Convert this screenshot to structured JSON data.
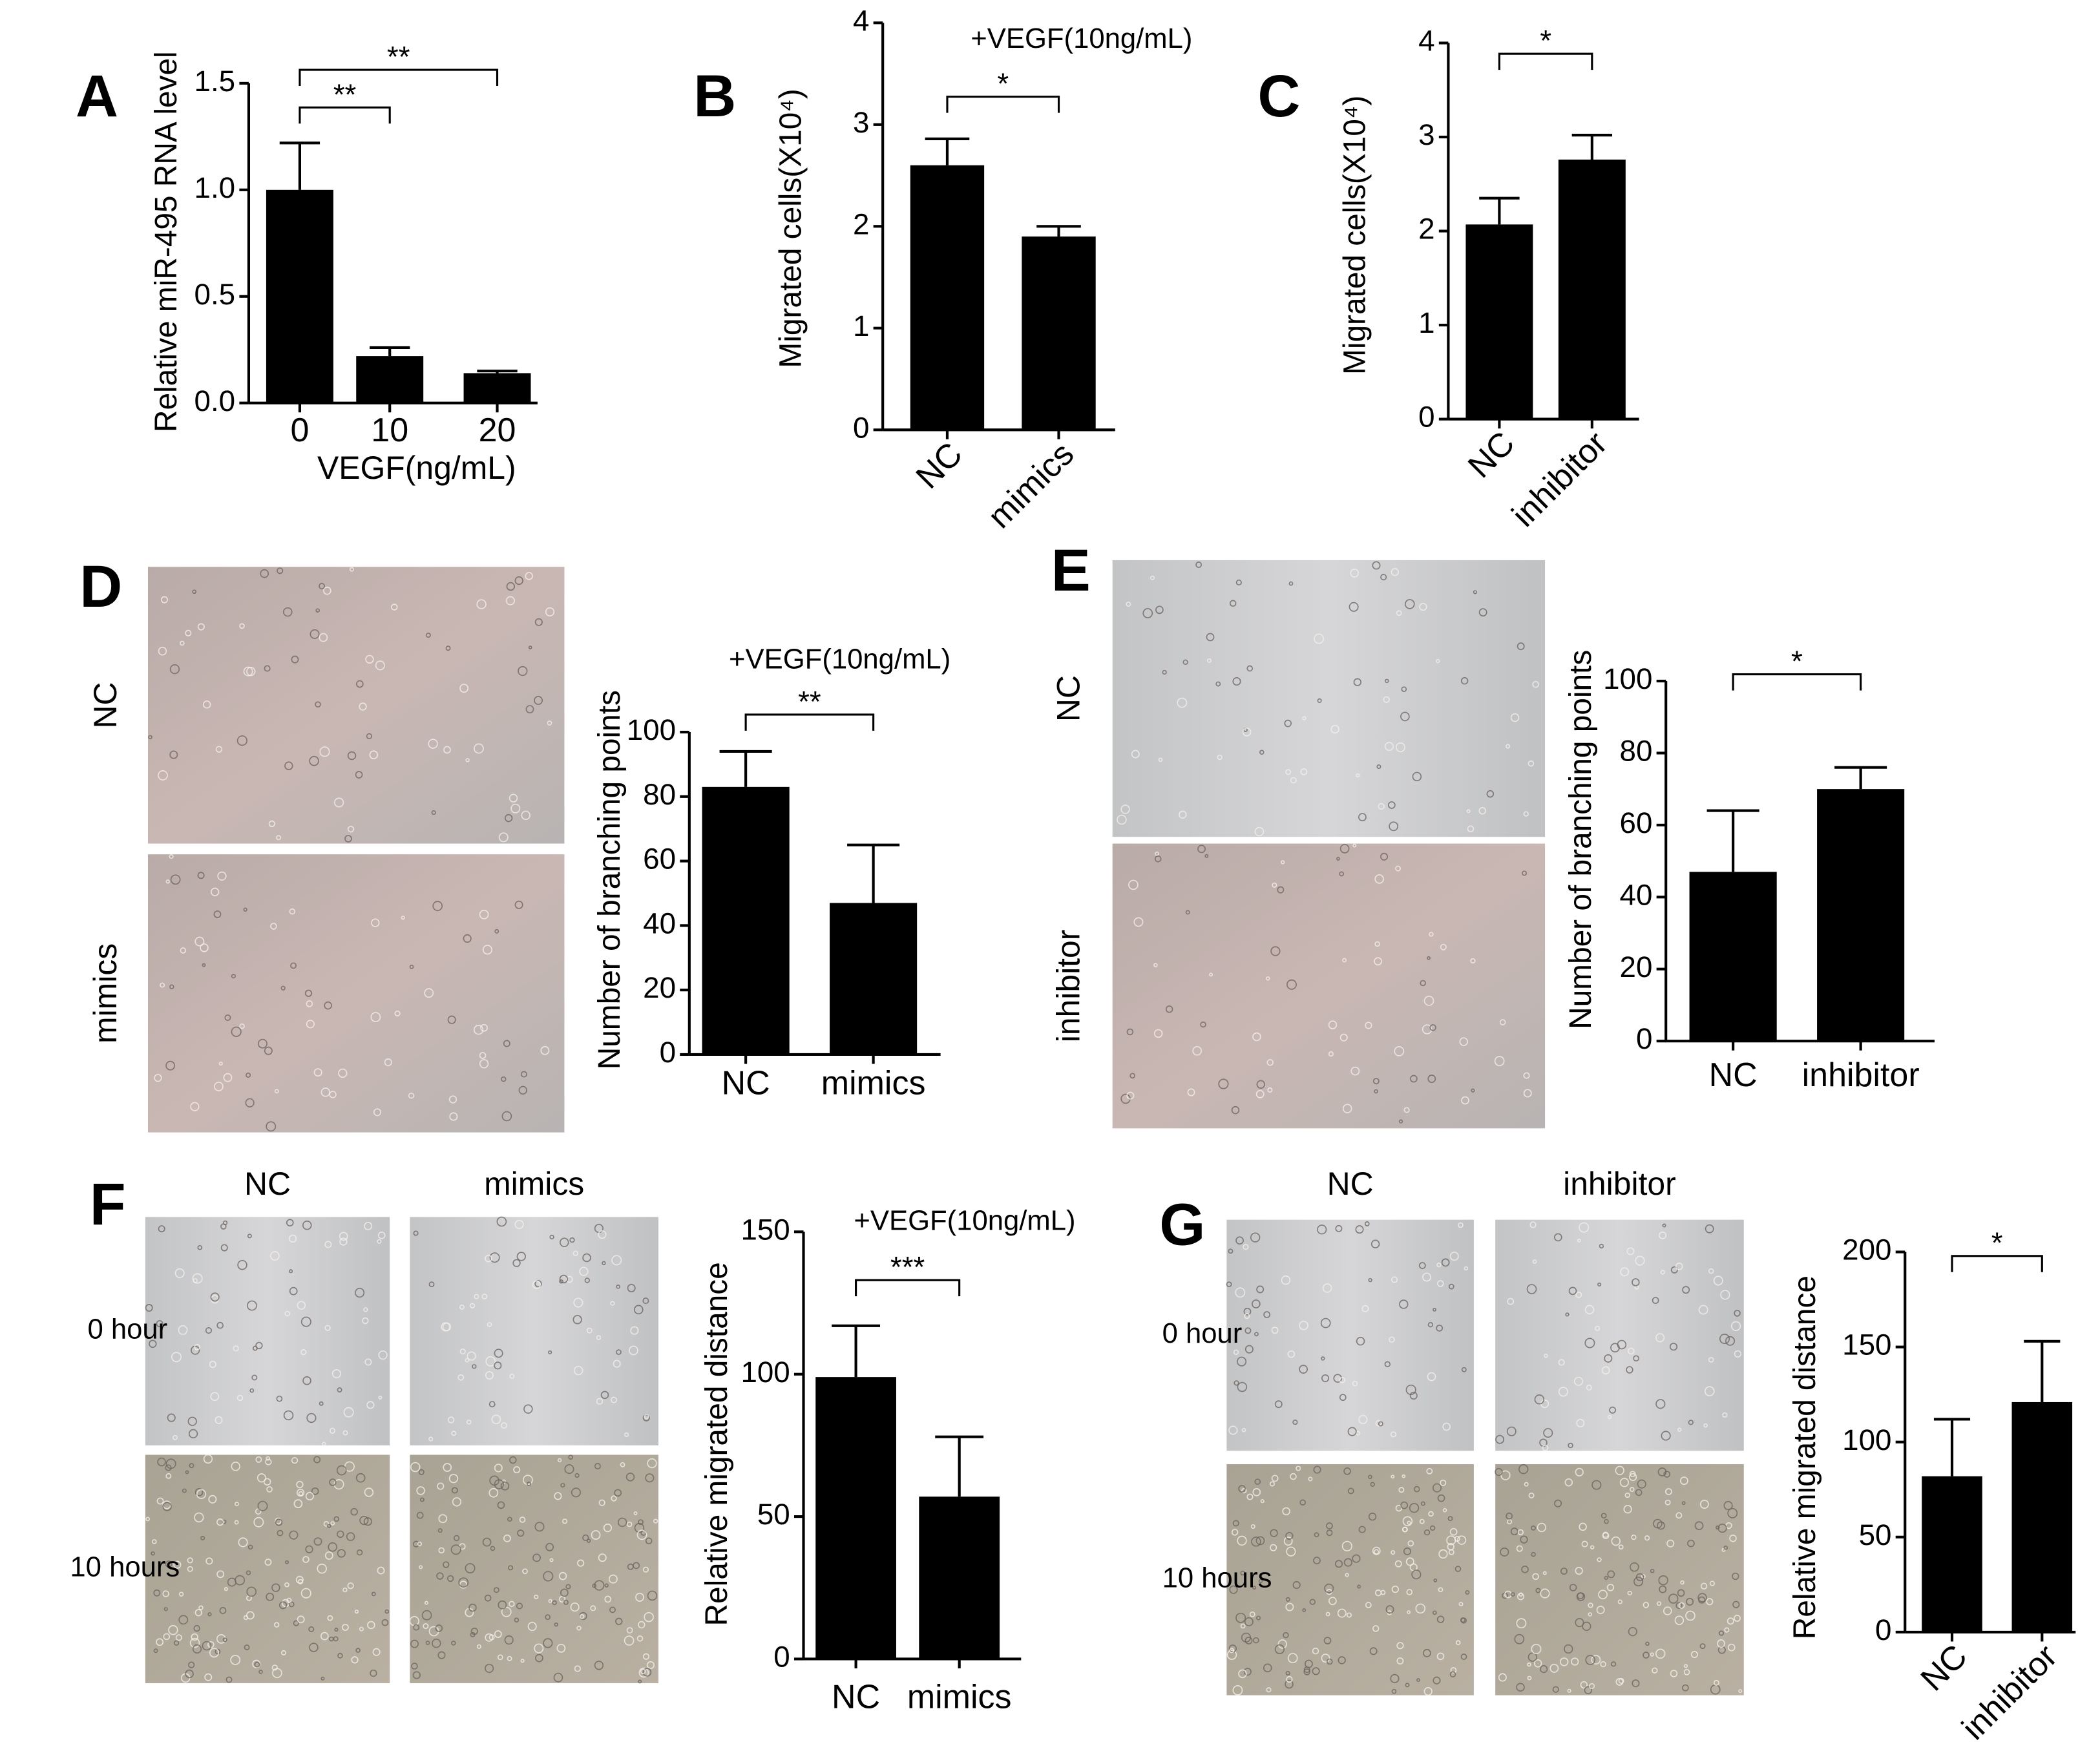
{
  "chart_data": [
    {
      "type": "bar",
      "panel": "A",
      "ylabel": "Relative miR-495 RNA level",
      "xlabel": "VEGF(ng/mL)",
      "categories": [
        "0",
        "10",
        "20"
      ],
      "values": [
        1.0,
        0.22,
        0.14
      ],
      "errors": [
        0.22,
        0.04,
        0.01
      ],
      "color": "#000000",
      "ylim": [
        0,
        1.5
      ],
      "yticks": [
        {
          "value": 0,
          "label": "0.0"
        },
        {
          "value": 0.5,
          "label": "0.5"
        },
        {
          "value": 1,
          "label": "1.0"
        },
        {
          "value": 1.5,
          "label": "1.5"
        }
      ],
      "annotations": [
        "**",
        "**"
      ]
    },
    {
      "type": "bar",
      "panel": "B",
      "title": "+VEGF(10ng/mL)",
      "ylabel": "Migrated cells(X10⁴)",
      "categories": [
        "NC",
        "mimics"
      ],
      "values": [
        2.6,
        1.9
      ],
      "errors": [
        0.26,
        0.1
      ],
      "color": "#000000",
      "ylim": [
        0,
        4
      ],
      "yticks": [
        0,
        1,
        2,
        3,
        4
      ],
      "annotations": [
        "*"
      ]
    },
    {
      "type": "bar",
      "panel": "C",
      "ylabel": "Migrated cells(X10⁴)",
      "categories": [
        "NC",
        "inhibitor"
      ],
      "values": [
        2.07,
        2.76
      ],
      "errors": [
        0.28,
        0.26
      ],
      "color": "#000000",
      "ylim": [
        0,
        4
      ],
      "yticks": [
        0,
        1,
        2,
        3,
        4
      ],
      "annotations": [
        "*"
      ]
    },
    {
      "type": "bar",
      "panel": "D",
      "title": "+VEGF(10ng/mL)",
      "ylabel": "Number of branching points",
      "categories": [
        "NC",
        "mimics"
      ],
      "values": [
        83,
        47
      ],
      "errors": [
        11,
        18
      ],
      "color": "#000000",
      "ylim": [
        0,
        100
      ],
      "yticks": [
        0,
        20,
        40,
        60,
        80,
        100
      ],
      "annotations": [
        "**"
      ]
    },
    {
      "type": "bar",
      "panel": "E",
      "ylabel": "Number of branching points",
      "categories": [
        "NC",
        "inhibitor"
      ],
      "values": [
        47,
        70
      ],
      "errors": [
        17,
        6
      ],
      "color": "#000000",
      "ylim": [
        0,
        100
      ],
      "yticks": [
        0,
        20,
        40,
        60,
        80,
        100
      ],
      "annotations": [
        "*"
      ]
    },
    {
      "type": "bar",
      "panel": "F",
      "title": "+VEGF(10ng/mL)",
      "ylabel": "Relative migrated distance",
      "categories": [
        "NC",
        "mimics"
      ],
      "values": [
        99,
        57
      ],
      "errors": [
        18,
        21
      ],
      "color": "#000000",
      "ylim": [
        0,
        150
      ],
      "yticks": [
        0,
        50,
        100,
        150
      ],
      "annotations": [
        "***"
      ]
    },
    {
      "type": "bar",
      "panel": "G",
      "ylabel": "Relative migrated distance",
      "categories": [
        "NC",
        "inhibitor"
      ],
      "values": [
        82,
        121
      ],
      "errors": [
        30,
        32
      ],
      "color": "#000000",
      "ylim": [
        0,
        200
      ],
      "yticks": [
        0,
        50,
        100,
        150,
        200
      ],
      "annotations": [
        "*"
      ]
    }
  ],
  "micrographs": [
    {
      "rows": [
        "NC",
        "mimics"
      ]
    },
    {
      "rows": [
        "NC",
        "inhibitor"
      ]
    },
    {
      "columns": [
        "NC",
        "mimics"
      ],
      "rows": [
        "0 hour",
        "10 hours"
      ]
    },
    {
      "columns": [
        "NC",
        "inhibitor"
      ],
      "rows": [
        "0 hour",
        "10 hours"
      ]
    }
  ]
}
